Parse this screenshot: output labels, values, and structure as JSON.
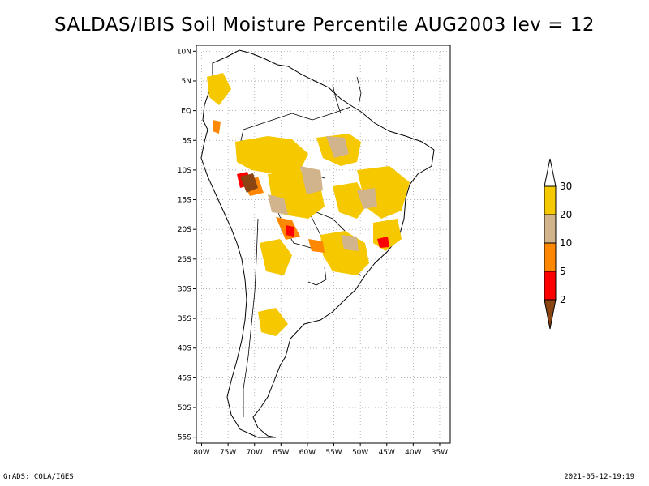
{
  "title": "SALDAS/IBIS Soil Moisture Percentile AUG2003 lev = 12",
  "footer": {
    "left": "GrADS: COLA/IGES",
    "right": "2021-05-12-19:19"
  },
  "map": {
    "lat_ticks": [
      "10N",
      "5N",
      "EQ",
      "5S",
      "10S",
      "15S",
      "20S",
      "25S",
      "30S",
      "35S",
      "40S",
      "45S",
      "50S",
      "55S"
    ],
    "lon_ticks": [
      "80W",
      "75W",
      "70W",
      "65W",
      "60W",
      "55W",
      "50W",
      "45W",
      "40W",
      "35W"
    ],
    "lat_range": [
      -56,
      11
    ],
    "lon_range": [
      -81,
      -33
    ],
    "grid": true,
    "grid_style": "dotted"
  },
  "colorbar": {
    "levels": [
      "30",
      "20",
      "10",
      "5",
      "2"
    ],
    "colors": [
      "#ffffff",
      "#f5c800",
      "#d2b48c",
      "#ff8800",
      "#ff0000",
      "#8b4513"
    ]
  }
}
